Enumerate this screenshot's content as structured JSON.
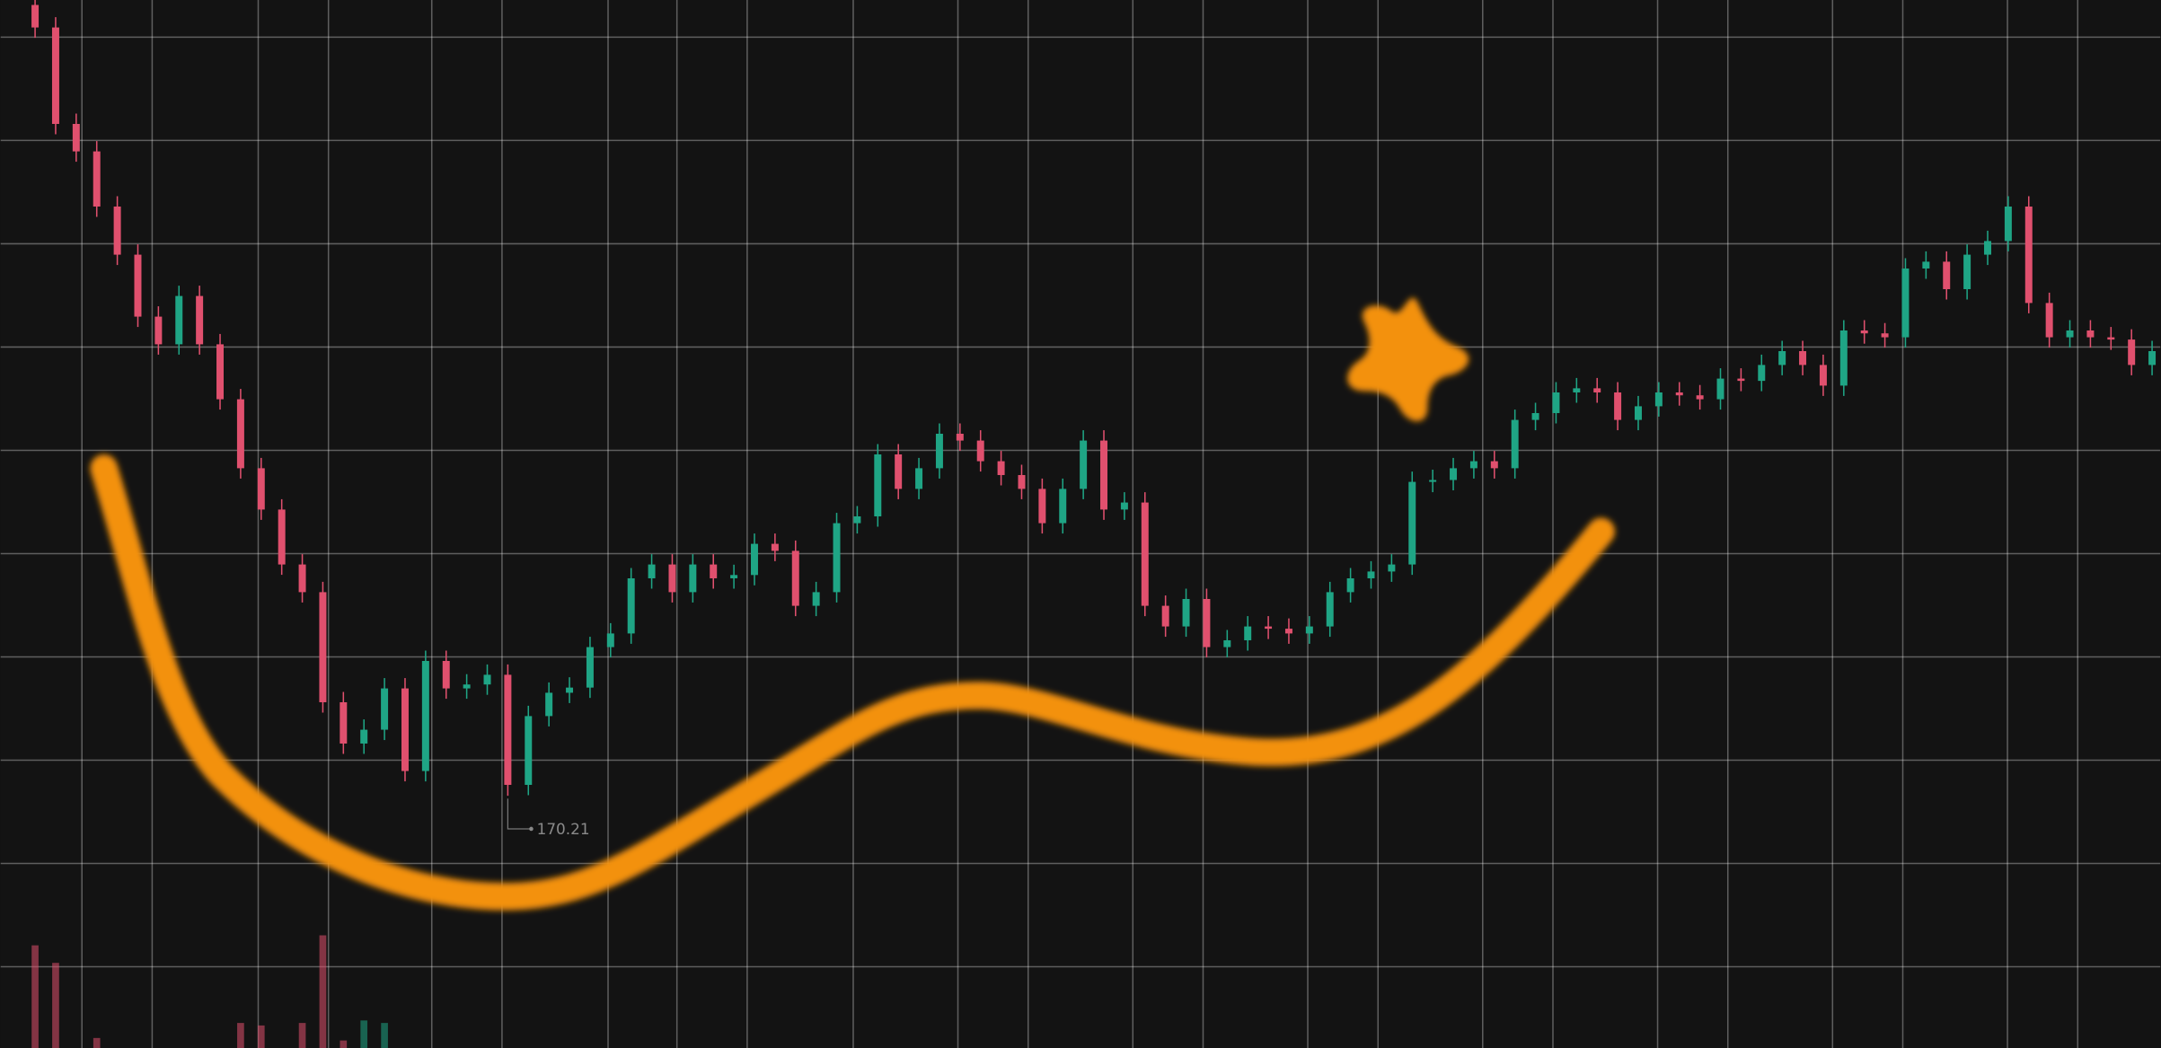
{
  "chart_data": {
    "type": "candlestick",
    "open": [
      208.5,
      207.41,
      202.74,
      201.41,
      198.74,
      196.41,
      193.41,
      192.07,
      194.41,
      192.07,
      189.41,
      186.07,
      184.07,
      181.41,
      180.07,
      174.74,
      172.74,
      173.41,
      175.41,
      171.41,
      176.74,
      175.41,
      175.6,
      176.07,
      170.74,
      174.07,
      175.2,
      175.45,
      177.41,
      178.07,
      180.74,
      181.41,
      180.07,
      181.41,
      180.74,
      180.9,
      182.41,
      182.07,
      179.41,
      180.07,
      183.41,
      183.74,
      186.74,
      185.07,
      186.07,
      187.74,
      187.41,
      186.41,
      185.74,
      185.07,
      183.41,
      185.07,
      187.41,
      184.07,
      184.41,
      179.41,
      178.41,
      179.74,
      177.41,
      177.74,
      178.41,
      178.3,
      178.07,
      178.41,
      180.07,
      180.74,
      181.07,
      181.41,
      185.41,
      185.5,
      186.07,
      186.41,
      186.07,
      188.41,
      188.74,
      189.74,
      189.94,
      189.74,
      188.41,
      189.07,
      189.74,
      189.6,
      189.41,
      190.41,
      190.3,
      191.07,
      191.74,
      191.07,
      190.07,
      192.74,
      192.6,
      192.41,
      195.74,
      196.07,
      194.74,
      196.41,
      197.07,
      198.74,
      194.07,
      192.41,
      192.74,
      192.41,
      192.3,
      191.07
    ],
    "high": [
      209.0,
      207.91,
      203.24,
      201.91,
      199.24,
      196.91,
      193.91,
      194.91,
      194.91,
      192.57,
      189.91,
      186.57,
      184.57,
      181.91,
      180.57,
      175.24,
      173.91,
      175.91,
      175.91,
      177.24,
      177.24,
      176.1,
      176.57,
      176.57,
      174.57,
      175.7,
      175.95,
      177.91,
      178.57,
      181.24,
      181.91,
      181.91,
      181.91,
      181.91,
      181.4,
      182.91,
      182.91,
      182.57,
      180.57,
      183.91,
      184.24,
      187.24,
      187.24,
      186.57,
      188.24,
      188.24,
      187.91,
      186.91,
      186.24,
      185.57,
      185.57,
      187.91,
      187.91,
      184.91,
      184.91,
      179.91,
      180.24,
      180.24,
      178.24,
      178.91,
      178.91,
      178.8,
      178.91,
      180.57,
      181.24,
      181.57,
      181.91,
      185.91,
      186.0,
      186.57,
      186.91,
      186.91,
      188.91,
      189.24,
      190.24,
      190.44,
      190.44,
      190.24,
      189.57,
      190.24,
      190.24,
      190.1,
      190.91,
      190.91,
      191.57,
      192.24,
      192.24,
      191.57,
      193.24,
      193.24,
      193.1,
      196.24,
      196.57,
      196.57,
      196.91,
      197.57,
      199.24,
      199.24,
      194.57,
      193.24,
      193.24,
      192.91,
      192.8,
      192.24
    ],
    "low": [
      206.91,
      202.24,
      200.91,
      198.24,
      195.91,
      192.91,
      191.57,
      191.57,
      191.57,
      188.91,
      185.57,
      183.57,
      180.91,
      179.57,
      174.24,
      172.24,
      172.24,
      172.91,
      170.91,
      170.91,
      174.91,
      174.91,
      175.1,
      170.21,
      170.24,
      173.57,
      174.7,
      174.95,
      176.91,
      177.57,
      180.24,
      179.57,
      179.57,
      180.24,
      180.24,
      180.4,
      181.57,
      178.91,
      178.91,
      179.57,
      182.91,
      183.24,
      184.57,
      184.57,
      185.57,
      186.91,
      185.91,
      185.24,
      184.57,
      182.91,
      182.91,
      184.57,
      183.57,
      183.57,
      178.91,
      177.91,
      177.91,
      176.91,
      176.91,
      177.24,
      177.8,
      177.57,
      177.57,
      177.91,
      179.57,
      180.24,
      180.57,
      180.91,
      184.91,
      185.0,
      185.57,
      185.57,
      185.57,
      187.91,
      188.24,
      189.24,
      189.24,
      187.91,
      187.91,
      188.57,
      189.1,
      188.91,
      188.91,
      189.8,
      189.8,
      190.57,
      190.57,
      189.57,
      189.57,
      192.1,
      191.91,
      191.91,
      195.24,
      194.24,
      194.24,
      195.91,
      196.57,
      193.57,
      191.91,
      191.91,
      191.91,
      191.8,
      190.57,
      190.57
    ],
    "close": [
      207.41,
      202.74,
      201.41,
      198.74,
      196.41,
      193.41,
      192.07,
      194.41,
      192.07,
      189.41,
      186.07,
      184.07,
      181.41,
      180.07,
      174.74,
      172.74,
      173.41,
      175.41,
      171.41,
      176.74,
      175.41,
      175.6,
      176.07,
      170.74,
      174.07,
      175.2,
      175.45,
      177.41,
      178.07,
      180.74,
      181.41,
      180.07,
      181.41,
      180.74,
      180.9,
      182.41,
      182.07,
      179.41,
      180.07,
      183.41,
      183.74,
      186.74,
      185.07,
      186.07,
      187.74,
      187.41,
      186.41,
      185.74,
      185.07,
      183.41,
      185.07,
      187.41,
      184.07,
      184.41,
      179.41,
      178.41,
      179.74,
      177.41,
      177.74,
      178.41,
      178.3,
      178.07,
      178.41,
      180.07,
      180.74,
      181.07,
      181.41,
      185.41,
      185.5,
      186.07,
      186.41,
      186.07,
      188.41,
      188.74,
      189.74,
      189.94,
      189.74,
      188.41,
      189.07,
      189.74,
      189.6,
      189.41,
      190.41,
      190.3,
      191.07,
      191.74,
      191.07,
      190.07,
      192.74,
      192.6,
      192.41,
      195.74,
      196.07,
      194.74,
      196.41,
      197.07,
      198.74,
      194.07,
      192.41,
      192.74,
      192.41,
      192.3,
      191.07,
      191.74
    ],
    "volume": [
      82,
      68,
      null,
      8,
      null,
      null,
      null,
      null,
      null,
      null,
      20,
      18,
      null,
      20,
      90,
      6,
      22,
      20,
      null,
      null,
      null,
      null,
      null,
      null,
      null,
      null,
      null,
      null,
      null,
      null,
      null,
      null,
      null,
      null,
      null,
      null,
      null,
      null,
      null,
      null,
      null,
      null,
      null,
      null,
      null,
      null,
      null,
      null,
      null,
      null,
      null,
      null,
      null,
      null,
      null,
      null,
      null,
      null,
      null,
      null,
      null,
      null,
      null,
      null,
      null,
      null,
      null,
      null,
      null,
      null,
      null,
      null,
      null,
      null,
      null,
      null,
      null,
      null,
      null,
      null,
      null,
      null,
      null,
      null,
      null,
      null,
      null,
      null,
      null,
      null,
      null,
      null,
      null,
      null,
      null,
      null,
      null,
      null,
      null,
      null,
      null,
      null,
      null,
      null
    ],
    "up_color": "#1fa585",
    "down_color": "#e0506e",
    "ylim": [
      158.0,
      208.74
    ],
    "vlim": [
      0,
      110
    ],
    "grid": true
  }
}
